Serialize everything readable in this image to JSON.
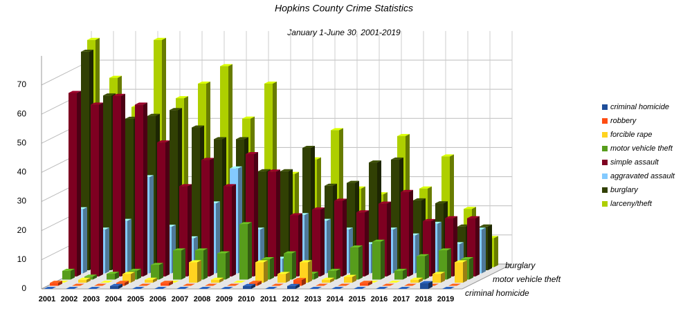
{
  "chart_data": {
    "type": "bar3d",
    "title": "Hopkins County Crime   Statistics",
    "subtitle": "January 1-June 30, 2001-2019",
    "categories": [
      "2001",
      "2002",
      "2003",
      "2004",
      "2005",
      "2006",
      "2007",
      "2008",
      "2009",
      "2010",
      "2011",
      "2012",
      "2013",
      "2014",
      "2015",
      "2016",
      "2017",
      "2018",
      "2019"
    ],
    "series": [
      {
        "name": "criminal homicide",
        "color": "#1f4e9a",
        "values": [
          0,
          0,
          0,
          1,
          0,
          0,
          0,
          0,
          0,
          1,
          0,
          1,
          0,
          0,
          0,
          0,
          0,
          2,
          0
        ]
      },
      {
        "name": "robbery",
        "color": "#ff4d12",
        "values": [
          1,
          0,
          0,
          1,
          0,
          1,
          0,
          0,
          0,
          1,
          0,
          2,
          0,
          0,
          1,
          0,
          0,
          0,
          0
        ]
      },
      {
        "name": "forcible rape",
        "color": "#ffd320",
        "values": [
          0,
          1,
          0,
          3,
          1,
          0,
          7,
          1,
          0,
          7,
          3,
          7,
          1,
          2,
          0,
          0,
          1,
          3,
          7
        ]
      },
      {
        "name": "motor vehicle theft",
        "color": "#579d1c",
        "values": [
          3,
          1,
          2,
          3,
          5,
          10,
          10,
          9,
          19,
          7,
          9,
          2,
          3,
          11,
          13,
          3,
          8,
          10,
          7
        ]
      },
      {
        "name": "simple assault",
        "color": "#7e0021",
        "values": [
          63,
          59,
          62,
          59,
          46,
          31,
          40,
          31,
          42,
          36,
          21,
          23,
          26,
          22,
          25,
          29,
          19,
          20,
          20
        ]
      },
      {
        "name": "aggravated assault",
        "color": "#83caff",
        "values": [
          22,
          15,
          18,
          33,
          16,
          12,
          24,
          36,
          15,
          5,
          20,
          18,
          15,
          10,
          15,
          13,
          17,
          10,
          15
        ]
      },
      {
        "name": "burglary",
        "color": "#314004",
        "values": [
          75,
          60,
          52,
          53,
          55,
          49,
          45,
          45,
          34,
          34,
          42,
          29,
          30,
          37,
          38,
          24,
          23,
          15,
          15
        ]
      },
      {
        "name": "larceny/theft",
        "color": "#aecf00",
        "values": [
          78,
          65,
          55,
          78,
          58,
          63,
          69,
          51,
          63,
          32,
          37,
          47,
          27,
          25,
          45,
          27,
          38,
          20,
          10
        ]
      }
    ],
    "ylim": [
      0,
      80
    ],
    "yticks": [
      0,
      10,
      20,
      30,
      40,
      50,
      60,
      70
    ],
    "grid": true,
    "legend": "right"
  }
}
